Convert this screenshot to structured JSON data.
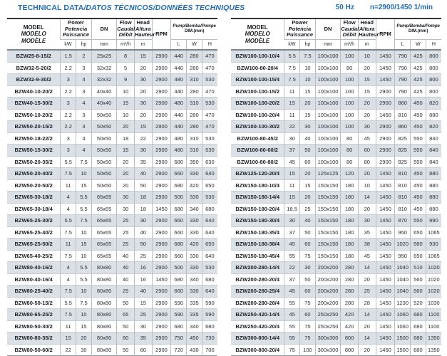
{
  "page": {
    "title_main": "TECHNICAL DATA",
    "title_rest": "/DATOS TÉCNICOS/DONNÉES TECHNIQUES",
    "frequency": "50 Hz",
    "speed": "n=2900/1450 1/min"
  },
  "colors": {
    "accent_blue": "#1f6cb4",
    "row_stripe": "#dbe0e7"
  },
  "header": {
    "model": [
      "MODEL",
      "MODELO",
      "MODÈLE"
    ],
    "power": [
      "Power",
      "Potencia",
      "Puissance"
    ],
    "power_units": [
      "kW",
      "hp"
    ],
    "dn": "DN",
    "dn_unit": "mm",
    "flow": [
      "Flow",
      "Caudal",
      "Débit"
    ],
    "flow_unit": "m³/h",
    "head": [
      "Head",
      "Altura",
      "Hauteur"
    ],
    "head_unit": "m",
    "rpm": "RPM",
    "dim": [
      "Pump/Bomba/Pompe",
      "DIM.(mm)"
    ],
    "dim_units": [
      "L",
      "W",
      "H"
    ]
  },
  "tables": {
    "left": {
      "rows": [
        {
          "model": "BZW25-8-15/2",
          "kw": "1.5",
          "hp": "2",
          "dn": "25x25",
          "flow": "8",
          "head": "15",
          "rpm": "2900",
          "l": "440",
          "w": "280",
          "h": "470"
        },
        {
          "model": "BZW32-5-20/2",
          "kw": "2.2",
          "hp": "3",
          "dn": "32x32",
          "flow": "5",
          "head": "20",
          "rpm": "2900",
          "l": "440",
          "w": "280",
          "h": "470"
        },
        {
          "model": "BZW32-9-30/2",
          "kw": "3",
          "hp": "4",
          "dn": "32x32",
          "flow": "9",
          "head": "30",
          "rpm": "2900",
          "l": "480",
          "w": "310",
          "h": "530"
        },
        {
          "model": "BZW40-10-20/2",
          "kw": "2.2",
          "hp": "3",
          "dn": "40x40",
          "flow": "10",
          "head": "20",
          "rpm": "2900",
          "l": "440",
          "w": "280",
          "h": "470"
        },
        {
          "model": "BZW40-15-30/2",
          "kw": "3",
          "hp": "4",
          "dn": "40x40",
          "flow": "15",
          "head": "30",
          "rpm": "2900",
          "l": "480",
          "w": "310",
          "h": "530"
        },
        {
          "model": "BZW50-10-20/2",
          "kw": "2.2",
          "hp": "3",
          "dn": "50x50",
          "flow": "10",
          "head": "20",
          "rpm": "2900",
          "l": "440",
          "w": "280",
          "h": "470"
        },
        {
          "model": "BZW50-20-15/2",
          "kw": "2.2",
          "hp": "3",
          "dn": "50x50",
          "flow": "20",
          "head": "15",
          "rpm": "2900",
          "l": "440",
          "w": "280",
          "h": "470"
        },
        {
          "model": "BZW50-18-22/2",
          "kw": "3",
          "hp": "4",
          "dn": "50x50",
          "flow": "18",
          "head": "22",
          "rpm": "2900",
          "l": "480",
          "w": "310",
          "h": "530"
        },
        {
          "model": "BZW50-15-30/2",
          "kw": "3",
          "hp": "4",
          "dn": "50x50",
          "flow": "15",
          "head": "30",
          "rpm": "2900",
          "l": "480",
          "w": "310",
          "h": "530"
        },
        {
          "model": "BZW50-20-35/2",
          "kw": "5.5",
          "hp": "7.5",
          "dn": "50x50",
          "flow": "20",
          "head": "35",
          "rpm": "2900",
          "l": "680",
          "w": "350",
          "h": "630"
        },
        {
          "model": "BZW50-20-40/2",
          "kw": "7.5",
          "hp": "10",
          "dn": "50x50",
          "flow": "20",
          "head": "40",
          "rpm": "2900",
          "l": "660",
          "w": "330",
          "h": "640"
        },
        {
          "model": "BZW50-20-50/2",
          "kw": "11",
          "hp": "15",
          "dn": "50x50",
          "flow": "20",
          "head": "50",
          "rpm": "2900",
          "l": "680",
          "w": "420",
          "h": "650"
        },
        {
          "model": "BZW65-30-18/2",
          "kw": "4",
          "hp": "5.5",
          "dn": "65x65",
          "flow": "30",
          "head": "18",
          "rpm": "2900",
          "l": "500",
          "w": "330",
          "h": "530"
        },
        {
          "model": "BZW65-30-18/4",
          "kw": "4",
          "hp": "5.5",
          "dn": "65x65",
          "flow": "30",
          "head": "18",
          "rpm": "1450",
          "l": "680",
          "w": "340",
          "h": "680"
        },
        {
          "model": "BZW65-25-30/2",
          "kw": "5.5",
          "hp": "7.5",
          "dn": "65x65",
          "flow": "25",
          "head": "30",
          "rpm": "2900",
          "l": "660",
          "w": "330",
          "h": "640"
        },
        {
          "model": "BZW65-25-40/2",
          "kw": "7.5",
          "hp": "10",
          "dn": "65x65",
          "flow": "25",
          "head": "40",
          "rpm": "2900",
          "l": "660",
          "w": "330",
          "h": "640"
        },
        {
          "model": "BZW65-25-50/2",
          "kw": "11",
          "hp": "15",
          "dn": "65x65",
          "flow": "25",
          "head": "50",
          "rpm": "2900",
          "l": "680",
          "w": "420",
          "h": "650"
        },
        {
          "model": "BZW65-40-25/2",
          "kw": "7.5",
          "hp": "10",
          "dn": "65x65",
          "flow": "40",
          "head": "25",
          "rpm": "2900",
          "l": "660",
          "w": "330",
          "h": "640"
        },
        {
          "model": "BZW80-40-16/2",
          "kw": "4",
          "hp": "5.5",
          "dn": "80x80",
          "flow": "40",
          "head": "16",
          "rpm": "2900",
          "l": "500",
          "w": "330",
          "h": "530"
        },
        {
          "model": "BZW80-40-16/4",
          "kw": "4",
          "hp": "5.5",
          "dn": "80x80",
          "flow": "40",
          "head": "16",
          "rpm": "1450",
          "l": "680",
          "w": "340",
          "h": "680"
        },
        {
          "model": "BZW80-25-40/2",
          "kw": "7.5",
          "hp": "10",
          "dn": "80x80",
          "flow": "25",
          "head": "40",
          "rpm": "2900",
          "l": "660",
          "w": "330",
          "h": "640"
        },
        {
          "model": "BZW80-50-15/2",
          "kw": "5.5",
          "hp": "7.5",
          "dn": "80x80",
          "flow": "50",
          "head": "15",
          "rpm": "2900",
          "l": "590",
          "w": "335",
          "h": "590"
        },
        {
          "model": "BZW80-65-25/2",
          "kw": "7.5",
          "hp": "10",
          "dn": "80x80",
          "flow": "65",
          "head": "25",
          "rpm": "2900",
          "l": "590",
          "w": "335",
          "h": "590"
        },
        {
          "model": "BZW80-50-30/2",
          "kw": "11",
          "hp": "15",
          "dn": "80x80",
          "flow": "50",
          "head": "30",
          "rpm": "2900",
          "l": "680",
          "w": "340",
          "h": "680"
        },
        {
          "model": "BZW80-80-35/2",
          "kw": "15",
          "hp": "20",
          "dn": "80x80",
          "flow": "80",
          "head": "35",
          "rpm": "2900",
          "l": "750",
          "w": "450",
          "h": "730"
        },
        {
          "model": "BZW80-50-60/2",
          "kw": "22",
          "hp": "30",
          "dn": "80x80",
          "flow": "50",
          "head": "60",
          "rpm": "2900",
          "l": "720",
          "w": "430",
          "h": "700"
        }
      ]
    },
    "right": {
      "rows": [
        {
          "model": "BZW100-100-10/4",
          "kw": "5.5",
          "hp": "7.5",
          "dn": "100x100",
          "flow": "100",
          "head": "10",
          "rpm": "1450",
          "l": "790",
          "w": "425",
          "h": "800"
        },
        {
          "model": "BZW100-80-20/4",
          "kw": "7.5",
          "hp": "10",
          "dn": "100x100",
          "flow": "80",
          "head": "20",
          "rpm": "1450",
          "l": "790",
          "w": "425",
          "h": "800"
        },
        {
          "model": "BZW100-100-15/4",
          "kw": "7.5",
          "hp": "10",
          "dn": "100x100",
          "flow": "100",
          "head": "15",
          "rpm": "1450",
          "l": "790",
          "w": "425",
          "h": "800"
        },
        {
          "model": "BZW100-100-15/2",
          "kw": "11",
          "hp": "15",
          "dn": "100x100",
          "flow": "100",
          "head": "15",
          "rpm": "2900",
          "l": "790",
          "w": "425",
          "h": "800"
        },
        {
          "model": "BZW100-100-20/2",
          "kw": "15",
          "hp": "20",
          "dn": "100x100",
          "flow": "100",
          "head": "20",
          "rpm": "2900",
          "l": "860",
          "w": "450",
          "h": "820"
        },
        {
          "model": "BZW100-100-20/4",
          "kw": "11",
          "hp": "15",
          "dn": "100x100",
          "flow": "100",
          "head": "20",
          "rpm": "1450",
          "l": "810",
          "w": "450",
          "h": "880"
        },
        {
          "model": "BZW100-100-30/2",
          "kw": "22",
          "hp": "30",
          "dn": "100x100",
          "flow": "100",
          "head": "30",
          "rpm": "2900",
          "l": "860",
          "w": "450",
          "h": "820"
        },
        {
          "model": "BZW100-80-45/2",
          "kw": "30",
          "hp": "40",
          "dn": "100x100",
          "flow": "80",
          "head": "45",
          "rpm": "2900",
          "l": "825",
          "w": "550",
          "h": "840"
        },
        {
          "model": "BZW100-80-60/2",
          "kw": "37",
          "hp": "50",
          "dn": "100x100",
          "flow": "80",
          "head": "60",
          "rpm": "2900",
          "l": "825",
          "w": "550",
          "h": "840"
        },
        {
          "model": "BZW100-80-80/2",
          "kw": "45",
          "hp": "60",
          "dn": "100x100",
          "flow": "80",
          "head": "80",
          "rpm": "2900",
          "l": "825",
          "w": "550",
          "h": "840"
        },
        {
          "model": "BZW125-120-20/4",
          "kw": "15",
          "hp": "20",
          "dn": "125x125",
          "flow": "120",
          "head": "20",
          "rpm": "1450",
          "l": "810",
          "w": "450",
          "h": "880"
        },
        {
          "model": "BZW150-180-10/4",
          "kw": "11",
          "hp": "15",
          "dn": "150x150",
          "flow": "180",
          "head": "10",
          "rpm": "1450",
          "l": "810",
          "w": "450",
          "h": "880"
        },
        {
          "model": "BZW150-180-14/4",
          "kw": "15",
          "hp": "20",
          "dn": "150x150",
          "flow": "180",
          "head": "14",
          "rpm": "1450",
          "l": "810",
          "w": "450",
          "h": "880"
        },
        {
          "model": "BZW150-180-20/4",
          "kw": "18.5",
          "hp": "25",
          "dn": "150x150",
          "flow": "180",
          "head": "20",
          "rpm": "1450",
          "l": "810",
          "w": "450",
          "h": "880"
        },
        {
          "model": "BZW150-180-30/4",
          "kw": "30",
          "hp": "40",
          "dn": "150x150",
          "flow": "180",
          "head": "30",
          "rpm": "1450",
          "l": "870",
          "w": "550",
          "h": "990"
        },
        {
          "model": "BZW150-180-35/4",
          "kw": "37",
          "hp": "50",
          "dn": "150x150",
          "flow": "180",
          "head": "35",
          "rpm": "1450",
          "l": "950",
          "w": "650",
          "h": "1065"
        },
        {
          "model": "BZW150-180-38/4",
          "kw": "45",
          "hp": "60",
          "dn": "150x150",
          "flow": "180",
          "head": "38",
          "rpm": "1450",
          "l": "1020",
          "w": "580",
          "h": "930"
        },
        {
          "model": "BZW150-180-45/4",
          "kw": "55",
          "hp": "75",
          "dn": "150x150",
          "flow": "180",
          "head": "45",
          "rpm": "1450",
          "l": "950",
          "w": "650",
          "h": "1065"
        },
        {
          "model": "BZW200-280-14/4",
          "kw": "22",
          "hp": "30",
          "dn": "200x200",
          "flow": "280",
          "head": "14",
          "rpm": "1450",
          "l": "1040",
          "w": "510",
          "h": "1020"
        },
        {
          "model": "BZW200-280-20/4",
          "kw": "37",
          "hp": "50",
          "dn": "200x200",
          "flow": "280",
          "head": "20",
          "rpm": "1450",
          "l": "1040",
          "w": "560",
          "h": "1020"
        },
        {
          "model": "BZW200-280-25/4",
          "kw": "45",
          "hp": "60",
          "dn": "200x200",
          "flow": "280",
          "head": "25",
          "rpm": "1450",
          "l": "1040",
          "w": "560",
          "h": "1020"
        },
        {
          "model": "BZW200-280-28/4",
          "kw": "55",
          "hp": "75",
          "dn": "200x200",
          "flow": "280",
          "head": "28",
          "rpm": "1450",
          "l": "1230",
          "w": "520",
          "h": "1030"
        },
        {
          "model": "BZW250-420-14/4",
          "kw": "45",
          "hp": "60",
          "dn": "250x250",
          "flow": "420",
          "head": "14",
          "rpm": "1450",
          "l": "1060",
          "w": "680",
          "h": "1100"
        },
        {
          "model": "BZW250-420-20/4",
          "kw": "55",
          "hp": "75",
          "dn": "250x250",
          "flow": "420",
          "head": "20",
          "rpm": "1450",
          "l": "1060",
          "w": "680",
          "h": "1100"
        },
        {
          "model": "BZW300-800-14/4",
          "kw": "55",
          "hp": "75",
          "dn": "300x300",
          "flow": "800",
          "head": "14",
          "rpm": "1450",
          "l": "1500",
          "w": "680",
          "h": "1350"
        },
        {
          "model": "BZW300-800-20/4",
          "kw": "75",
          "hp": "100",
          "dn": "300x300",
          "flow": "800",
          "head": "20",
          "rpm": "1450",
          "l": "1500",
          "w": "680",
          "h": "1350"
        }
      ]
    }
  }
}
